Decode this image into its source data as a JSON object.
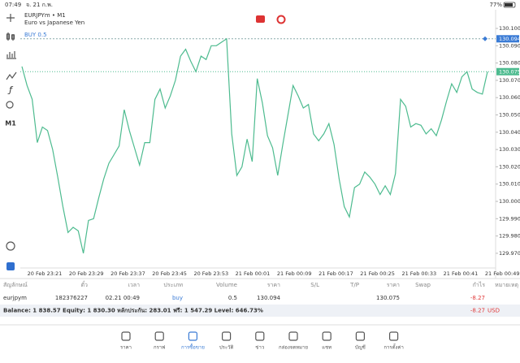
{
  "status_bar": {
    "time": "07:49",
    "date": "จ. 21 ก.พ.",
    "battery": "77%"
  },
  "toolbar": {
    "timeframe": "M1"
  },
  "chart": {
    "type": "line",
    "symbol": "EURJPYm • M1",
    "description": "Euro vs Japanese Yen",
    "color": "#4dbb8f",
    "values": [
      130.078,
      130.067,
      130.059,
      130.034,
      130.043,
      130.041,
      130.03,
      130.014,
      129.997,
      129.982,
      129.985,
      129.983,
      129.97,
      129.989,
      129.99,
      130.002,
      130.013,
      130.022,
      130.027,
      130.032,
      130.053,
      130.041,
      130.031,
      130.021,
      130.034,
      130.034,
      130.059,
      130.065,
      130.054,
      130.061,
      130.07,
      130.084,
      130.088,
      130.081,
      130.075,
      130.084,
      130.082,
      130.09,
      130.09,
      130.092,
      130.094,
      130.039,
      130.015,
      130.02,
      130.036,
      130.023,
      130.071,
      130.057,
      130.038,
      130.031,
      130.015,
      130.033,
      130.05,
      130.067,
      130.061,
      130.054,
      130.056,
      130.039,
      130.035,
      130.039,
      130.045,
      130.033,
      130.013,
      129.997,
      129.991,
      130.008,
      130.01,
      130.017,
      130.014,
      130.01,
      130.004,
      130.009,
      130.004,
      130.016,
      130.059,
      130.055,
      130.043,
      130.045,
      130.044,
      130.039,
      130.042,
      130.038,
      130.047,
      130.058,
      130.068,
      130.063,
      130.072,
      130.075,
      130.065,
      130.063,
      130.062,
      130.075
    ],
    "ylim": [
      129.9615,
      130.1108
    ],
    "yticks": [
      {
        "value": 130.1,
        "label": "130.100"
      },
      {
        "value": 130.09,
        "label": "130.090"
      },
      {
        "value": 130.08,
        "label": "130.080"
      },
      {
        "value": 130.07,
        "label": "130.070"
      },
      {
        "value": 130.06,
        "label": "130.060"
      },
      {
        "value": 130.05,
        "label": "130.050"
      },
      {
        "value": 130.04,
        "label": "130.040"
      },
      {
        "value": 130.03,
        "label": "130.030"
      },
      {
        "value": 130.02,
        "label": "130.020"
      },
      {
        "value": 130.01,
        "label": "130.010"
      },
      {
        "value": 130,
        "label": "130.000"
      },
      {
        "value": 129.99,
        "label": "129.990"
      },
      {
        "value": 129.98,
        "label": "129.980"
      },
      {
        "value": 129.97,
        "label": "129.970"
      }
    ],
    "xlabels": [
      "20 Feb 23:21",
      "20 Feb 23:29",
      "20 Feb 23:37",
      "20 Feb 23:45",
      "20 Feb 23:53",
      "21 Feb 00:01",
      "21 Feb 00:09",
      "21 Feb 00:17",
      "21 Feb 00:25",
      "21 Feb 00:33",
      "21 Feb 00:41",
      "21 Feb 00:49"
    ],
    "bid": {
      "value": 130.075,
      "label": "130.075"
    },
    "order": {
      "label": "BUY 0.5",
      "price": {
        "value": 130.094,
        "label": "130.094"
      }
    }
  },
  "positions": {
    "columns": [
      "สัญลักษณ์",
      "ตั๋ว",
      "เวลา",
      "ประเภท",
      "Volume",
      "ราคา",
      "S/L",
      "T/P",
      "ราคา",
      "Swap",
      "กำไร",
      "หมายเหตุ"
    ],
    "row": {
      "symbol": "eurjpym",
      "ticket": "182376227",
      "time": "02.21 00:49",
      "type": "buy",
      "volume": "0.5",
      "price_open": "130.094",
      "price_current": "130.075",
      "profit": "-8.27"
    }
  },
  "balance": {
    "text": "Balance: 1 838.57 Equity: 1 830.30 หลักประกัน: 283.01 ฟรี: 1 547.29 Level: 646.73%",
    "profit": "-8.27",
    "currency": "USD"
  },
  "tabs": [
    "ราคา",
    "กราฟ",
    "การซื้อขาย",
    "ประวัติ",
    "ข่าว",
    "กล่องจดหมาย",
    "แชท",
    "บัญชี",
    "การตั้งค่า"
  ]
}
